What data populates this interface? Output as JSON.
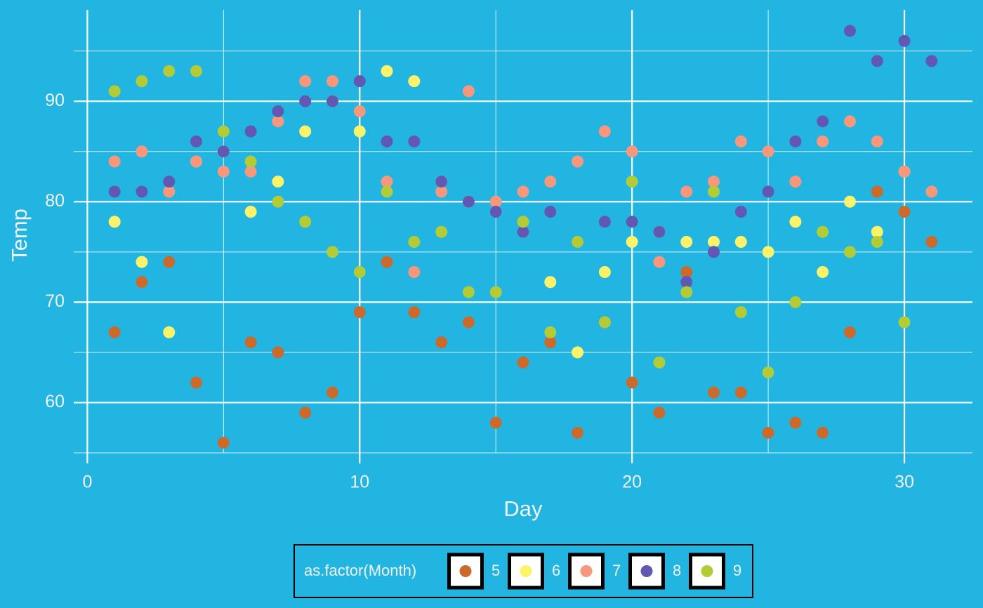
{
  "chart_data": {
    "type": "scatter",
    "x_label": "Day",
    "y_label": "Temp",
    "legend_title": "as.factor(Month)",
    "legend_position": "bottom",
    "xlim": [
      -0.5,
      32.5
    ],
    "xticks": [
      0,
      10,
      20,
      30
    ],
    "minor_xticks": [
      5,
      15,
      25
    ],
    "ylim": [
      55,
      99.1
    ],
    "yticks": [
      60,
      70,
      80,
      90
    ],
    "minor_yticks": [
      55,
      65,
      75,
      85,
      95
    ],
    "grid": true,
    "series": [
      {
        "name": "5",
        "color": "#cc6a2b",
        "x": [
          1,
          2,
          3,
          4,
          5,
          6,
          7,
          8,
          9,
          10,
          11,
          12,
          13,
          14,
          15,
          16,
          17,
          18,
          19,
          20,
          21,
          22,
          23,
          24,
          25,
          26,
          27,
          28,
          29,
          30,
          31
        ],
        "values": [
          67,
          72,
          74,
          62,
          56,
          66,
          65,
          59,
          61,
          69,
          74,
          69,
          66,
          68,
          58,
          64,
          66,
          57,
          68,
          62,
          59,
          73,
          61,
          61,
          57,
          58,
          57,
          67,
          81,
          79,
          76
        ]
      },
      {
        "name": "6",
        "color": "#fcf36a",
        "x": [
          1,
          2,
          3,
          4,
          5,
          6,
          7,
          8,
          9,
          10,
          11,
          12,
          13,
          14,
          15,
          16,
          17,
          18,
          19,
          20,
          21,
          22,
          23,
          24,
          25,
          26,
          27,
          28,
          29,
          30
        ],
        "values": [
          78,
          74,
          67,
          84,
          85,
          79,
          82,
          87,
          90,
          87,
          93,
          92,
          82,
          80,
          79,
          77,
          72,
          65,
          73,
          76,
          77,
          76,
          76,
          76,
          75,
          78,
          73,
          80,
          77,
          83
        ]
      },
      {
        "name": "7",
        "color": "#f8977b",
        "x": [
          1,
          2,
          3,
          4,
          5,
          6,
          7,
          8,
          9,
          10,
          11,
          12,
          13,
          14,
          15,
          16,
          17,
          18,
          19,
          20,
          21,
          22,
          23,
          24,
          25,
          26,
          27,
          28,
          29,
          30,
          31
        ],
        "values": [
          84,
          85,
          81,
          84,
          83,
          83,
          88,
          92,
          92,
          89,
          82,
          73,
          81,
          91,
          80,
          81,
          82,
          84,
          87,
          85,
          74,
          81,
          82,
          86,
          85,
          82,
          86,
          88,
          86,
          83,
          81
        ]
      },
      {
        "name": "8",
        "color": "#6058b2",
        "x": [
          1,
          2,
          3,
          4,
          5,
          6,
          7,
          8,
          9,
          10,
          11,
          12,
          13,
          14,
          15,
          16,
          17,
          18,
          19,
          20,
          21,
          22,
          23,
          24,
          25,
          26,
          27,
          28,
          29,
          30,
          31
        ],
        "values": [
          81,
          81,
          82,
          86,
          85,
          87,
          89,
          90,
          90,
          92,
          86,
          86,
          82,
          80,
          79,
          77,
          79,
          76,
          78,
          78,
          77,
          72,
          75,
          79,
          81,
          86,
          88,
          97,
          94,
          96,
          94
        ]
      },
      {
        "name": "9",
        "color": "#b3cc36",
        "x": [
          1,
          2,
          3,
          4,
          5,
          6,
          7,
          8,
          9,
          10,
          11,
          12,
          13,
          14,
          15,
          16,
          17,
          18,
          19,
          20,
          21,
          22,
          23,
          24,
          25,
          26,
          27,
          28,
          29,
          30
        ],
        "values": [
          91,
          92,
          93,
          93,
          87,
          84,
          80,
          78,
          75,
          73,
          81,
          76,
          77,
          71,
          71,
          78,
          67,
          76,
          68,
          82,
          64,
          71,
          81,
          69,
          63,
          70,
          77,
          75,
          76,
          68
        ]
      }
    ]
  }
}
